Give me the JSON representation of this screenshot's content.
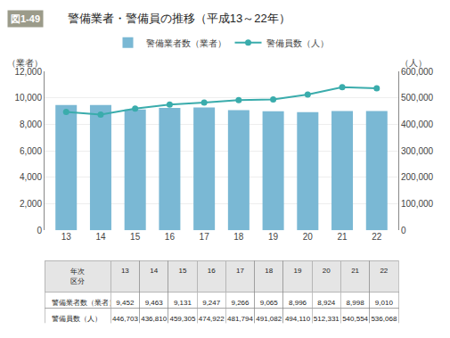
{
  "chart_data": [
    {
      "type": "bar",
      "title": "警備業者・警備員の推移（平成13～22年）",
      "annotations": [
        "図1-49"
      ],
      "categories": [
        "13",
        "14",
        "15",
        "16",
        "17",
        "18",
        "19",
        "20",
        "21",
        "22"
      ],
      "series": [
        {
          "name": "警備業者数（業者）",
          "type": "bar",
          "color": "#7ab8d4",
          "values": [
            9452,
            9463,
            9131,
            9247,
            9266,
            9065,
            8996,
            8924,
            8998,
            9010
          ]
        },
        {
          "name": "警備員数（人）",
          "type": "line",
          "color": "#3aacac",
          "marker": "circle",
          "axis": "y2",
          "values": [
            446703,
            436810,
            459305,
            474922,
            481794,
            491082,
            494110,
            512331,
            540554,
            536068
          ]
        }
      ],
      "ylabel": "（業者）",
      "y2label": "（人）",
      "ylim": [
        0,
        12000
      ],
      "yticks": [
        0,
        {
          "value": 2000,
          "label": "2,000"
        },
        {
          "value": 4000,
          "label": "4,000"
        },
        {
          "value": 6000,
          "label": "6,000"
        },
        {
          "value": 8000,
          "label": "8,000"
        },
        {
          "value": 10000,
          "label": "10,000"
        },
        {
          "value": 12000,
          "label": "12,000"
        }
      ],
      "y2lim": [
        0,
        600000
      ],
      "y2ticks": [
        0,
        {
          "value": 100000,
          "label": "100,000"
        },
        {
          "value": 200000,
          "label": "200,000"
        },
        {
          "value": 300000,
          "label": "300,000"
        },
        {
          "value": 400000,
          "label": "400,000"
        },
        {
          "value": 500000,
          "label": "500,000"
        },
        {
          "value": 600000,
          "label": "600,000"
        }
      ],
      "grid": true,
      "legend": "top"
    },
    {
      "type": "table",
      "header": [
        "年次\n区分",
        "13",
        "14",
        "15",
        "16",
        "17",
        "18",
        "19",
        "20",
        "21",
        "22"
      ],
      "cells": [
        [
          "警備業者数（業者）",
          "9,452",
          "9,463",
          "9,131",
          "9,247",
          "9,266",
          "9,065",
          "8,996",
          "8,924",
          "8,998",
          "9,010"
        ],
        [
          "警備員数（人）",
          "446,703",
          "436,810",
          "459,305",
          "474,922",
          "481,794",
          "491,082",
          "494,110",
          "512,331",
          "540,554",
          "536,068"
        ]
      ]
    }
  ]
}
